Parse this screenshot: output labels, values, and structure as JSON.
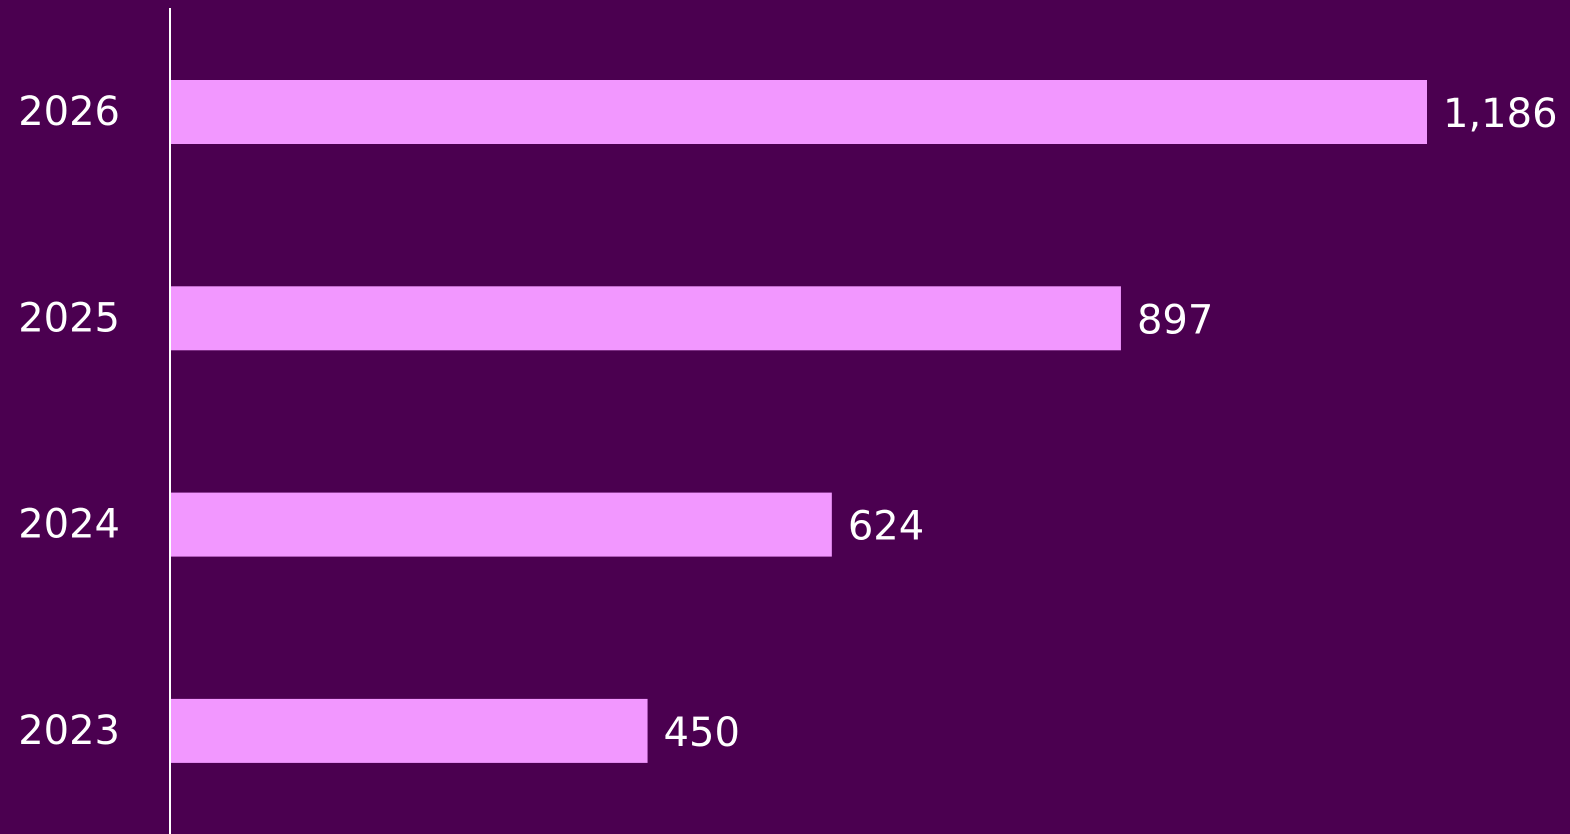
{
  "chart_data": {
    "type": "bar",
    "orientation": "horizontal",
    "categories": [
      "2026",
      "2025",
      "2024",
      "2023"
    ],
    "values": [
      1186,
      897,
      624,
      450
    ],
    "value_labels": [
      "1,186",
      "897",
      "624",
      "450"
    ],
    "color": "#f297ff",
    "background": "#4b0050",
    "grid": false
  }
}
